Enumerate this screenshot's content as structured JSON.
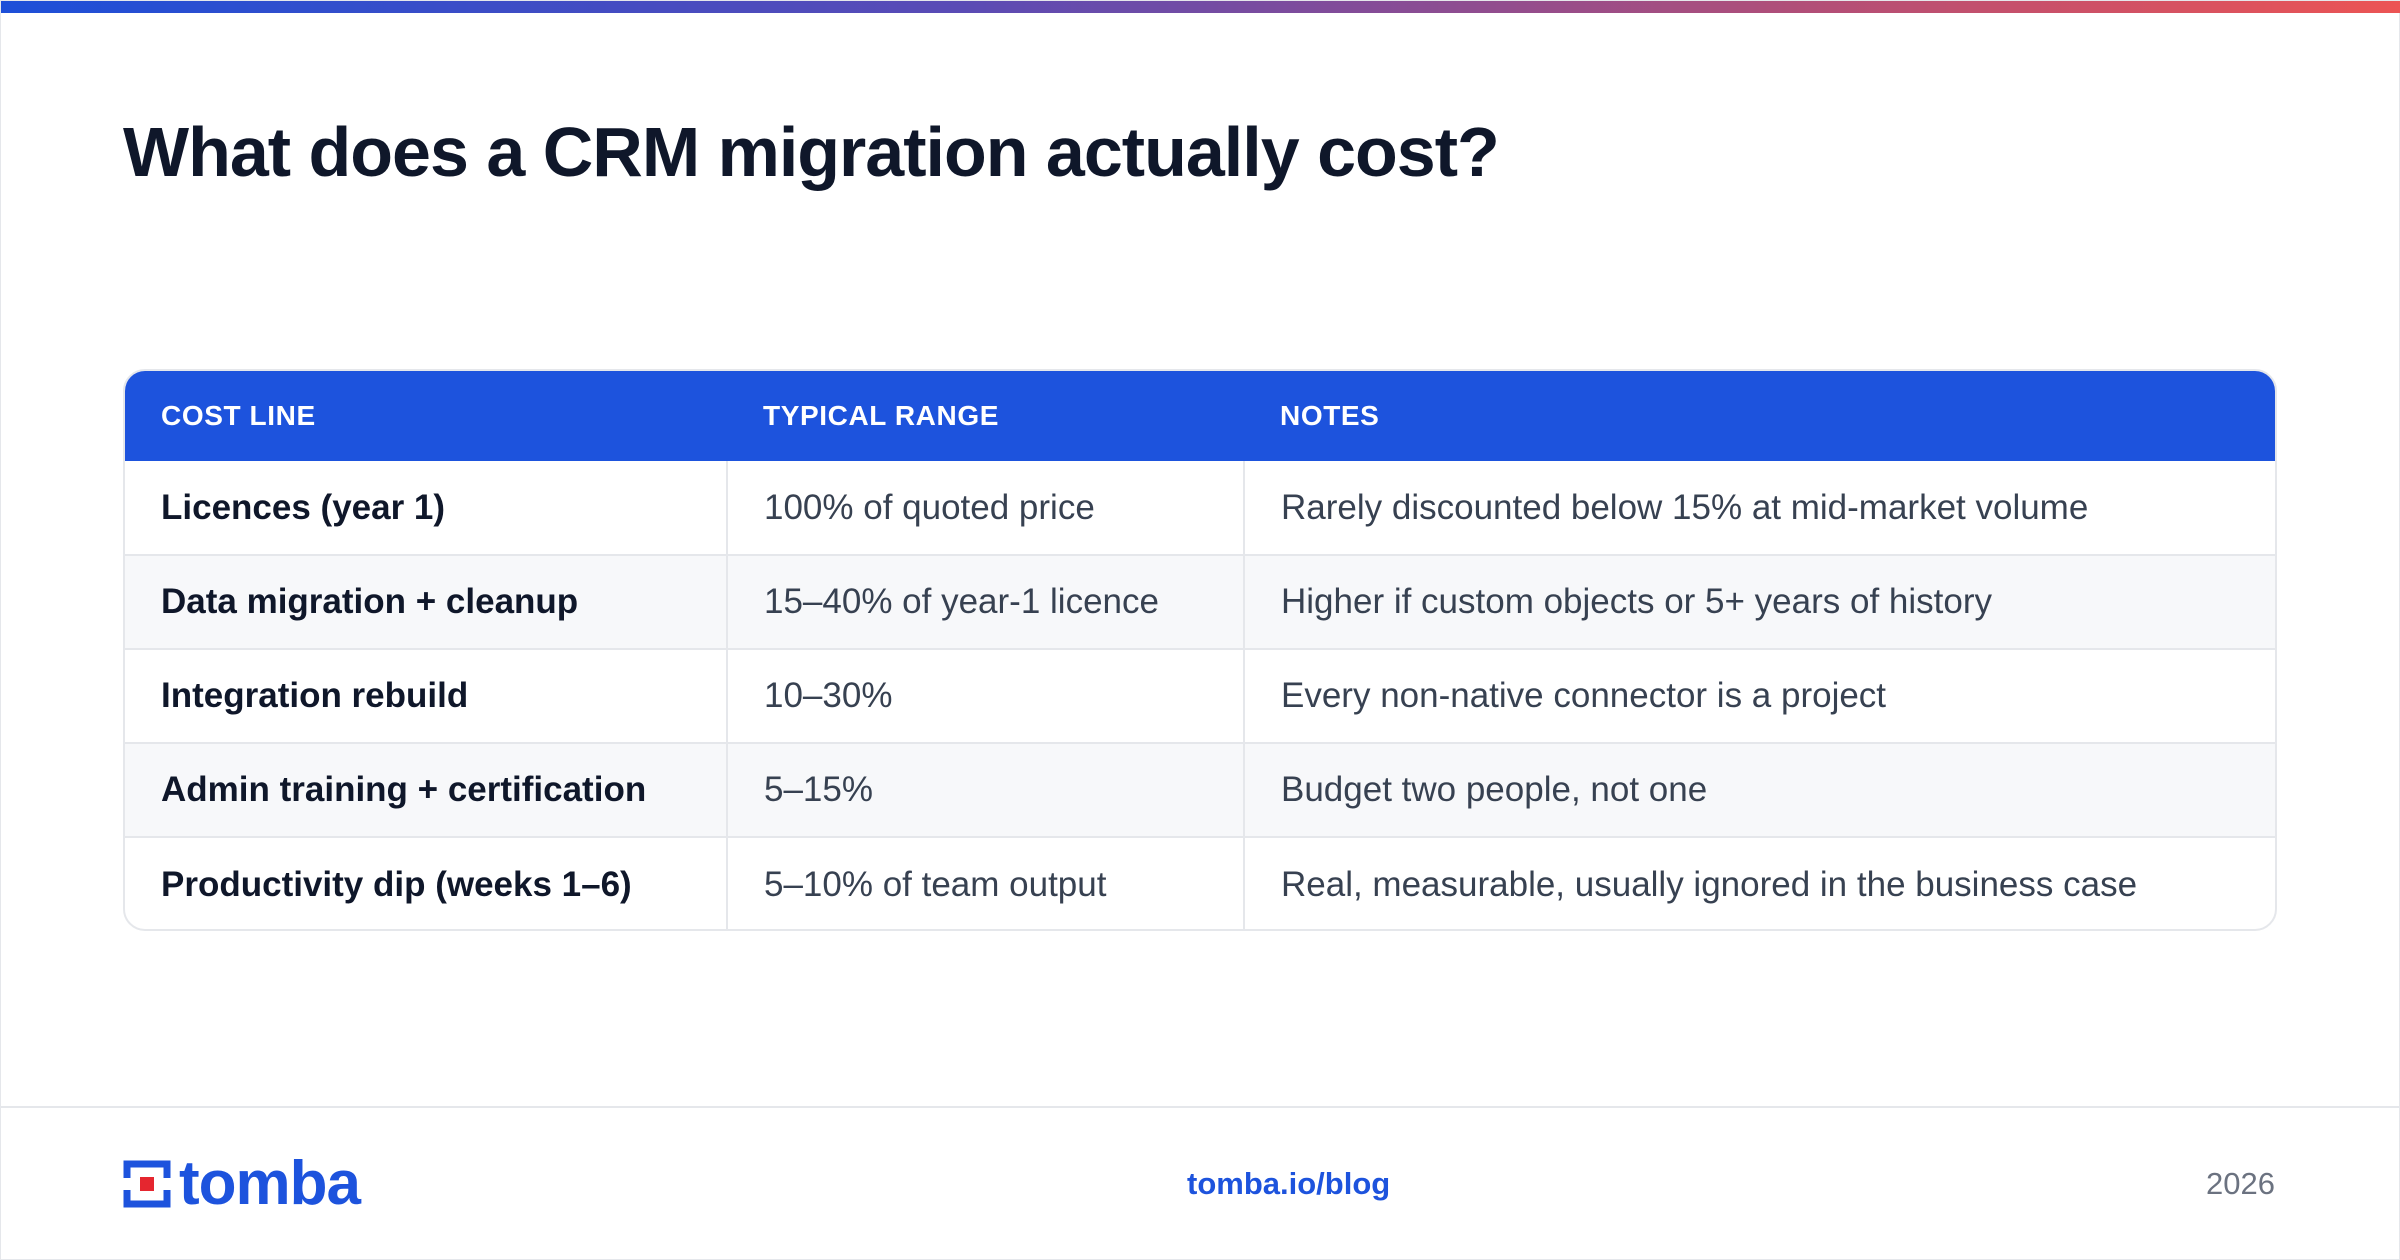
{
  "title": "What does a CRM migration actually cost?",
  "table": {
    "headers": [
      "COST LINE",
      "TYPICAL RANGE",
      "NOTES"
    ],
    "rows": [
      {
        "cost": "Licences (year 1)",
        "range": "100% of quoted price",
        "notes": "Rarely discounted below 15% at mid-market volume"
      },
      {
        "cost": "Data migration + cleanup",
        "range": "15–40% of year-1 licence",
        "notes": "Higher if custom objects or 5+ years of history"
      },
      {
        "cost": "Integration rebuild",
        "range": "10–30%",
        "notes": "Every non-native connector is a project"
      },
      {
        "cost": "Admin training + certification",
        "range": "5–15%",
        "notes": "Budget two people, not one"
      },
      {
        "cost": "Productivity dip (weeks 1–6)",
        "range": "5–10% of team output",
        "notes": "Real, measurable, usually ignored in the business case"
      }
    ]
  },
  "footer": {
    "logo_text": "tomba",
    "link": "tomba.io/blog",
    "year": "2026"
  },
  "colors": {
    "accent": "#1d53dd",
    "logo_red": "#e5262f",
    "title": "#0f172a"
  },
  "icons": {
    "logo": "tomba-logo-mark"
  }
}
